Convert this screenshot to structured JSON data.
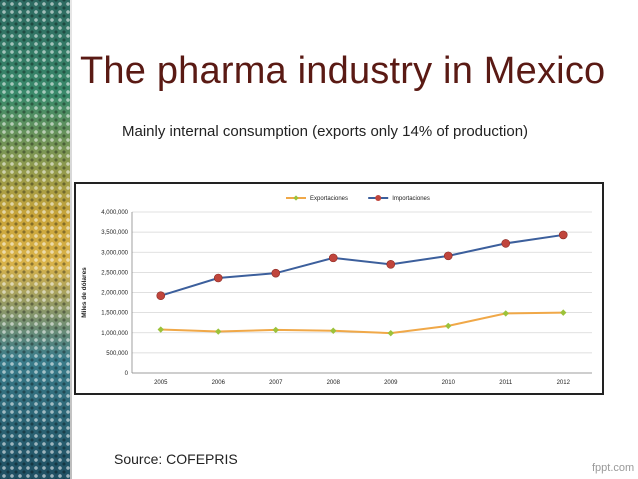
{
  "slide": {
    "title": "The pharma industry in Mexico",
    "subtitle": "Mainly internal consumption (exports only 14% of production)",
    "source": "Source: COFEPRIS",
    "logo_text": "fppt.com"
  },
  "chart_data": {
    "type": "line",
    "title": "",
    "xlabel": "",
    "ylabel": "Miles de dólares",
    "categories": [
      "2005",
      "2006",
      "2007",
      "2008",
      "2009",
      "2010",
      "2011",
      "2012"
    ],
    "yticks": [
      "0",
      "500,000",
      "1,000,000",
      "1,500,000",
      "2,000,000",
      "2,500,000",
      "3,000,000",
      "3,500,000",
      "4,000,000"
    ],
    "ylim": [
      0,
      4000000
    ],
    "grid": true,
    "legend_position": "top",
    "series": [
      {
        "name": "Exportaciones",
        "color": "#f0a848",
        "marker_color": "#9cc23a",
        "marker": "diamond",
        "values": [
          1080000,
          1030000,
          1070000,
          1050000,
          990000,
          1170000,
          1480000,
          1500000
        ]
      },
      {
        "name": "Importaciones",
        "color": "#3c5f9c",
        "marker_color": "#c0453c",
        "marker": "circle",
        "values": [
          1920000,
          2360000,
          2480000,
          2860000,
          2700000,
          2910000,
          3220000,
          3430000
        ]
      }
    ]
  }
}
